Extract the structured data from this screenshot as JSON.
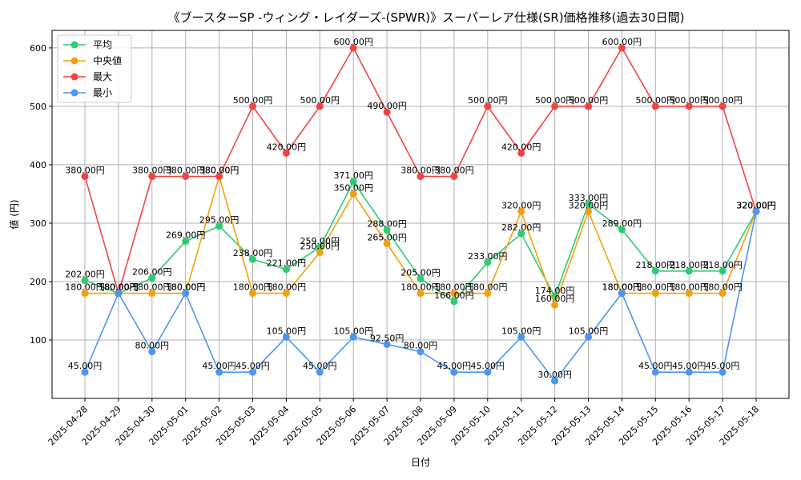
{
  "chart_data": {
    "type": "line",
    "title": "《ブースターSP -ウィング・レイダーズ-(SPWR)》スーパーレア仕様(SR)価格推移(過去30日間)",
    "xlabel": "日付",
    "ylabel": "値 (円)",
    "categories": [
      "2025-04-28",
      "2025-04-29",
      "2025-04-30",
      "2025-05-01",
      "2025-05-02",
      "2025-05-03",
      "2025-05-04",
      "2025-05-05",
      "2025-05-06",
      "2025-05-07",
      "2025-05-08",
      "2025-05-09",
      "2025-05-10",
      "2025-05-11",
      "2025-05-12",
      "2025-05-13",
      "2025-05-14",
      "2025-05-15",
      "2025-05-16",
      "2025-05-17",
      "2025-05-18"
    ],
    "ylim": [
      0,
      630
    ],
    "yticks": [
      100,
      200,
      300,
      400,
      500,
      600
    ],
    "grid": true,
    "legend_position": "top-left",
    "value_suffix": "円",
    "series": [
      {
        "name": "平均",
        "color": "#2ecc71",
        "values": [
          202,
          180,
          206,
          269,
          295,
          238,
          221,
          259,
          371,
          288,
          205,
          166,
          233,
          282,
          174,
          333,
          289,
          218,
          218,
          218,
          320
        ]
      },
      {
        "name": "中央値",
        "color": "#f1a10f",
        "values": [
          180,
          180,
          180,
          180,
          380,
          180,
          180,
          250,
          350,
          265,
          180,
          180,
          180,
          320,
          160,
          320,
          180,
          180,
          180,
          180,
          320
        ]
      },
      {
        "name": "最大",
        "color": "#ef4444",
        "values": [
          380,
          180,
          380,
          380,
          380,
          500,
          420,
          500,
          600,
          490,
          380,
          380,
          500,
          420,
          500,
          500,
          600,
          500,
          500,
          500,
          320
        ]
      },
      {
        "name": "最小",
        "color": "#4c96f0",
        "values": [
          45,
          180,
          80,
          180,
          45,
          45,
          105,
          45,
          105,
          92.5,
          80,
          45,
          45,
          105,
          30,
          105,
          180,
          45,
          45,
          45,
          320
        ]
      }
    ]
  }
}
